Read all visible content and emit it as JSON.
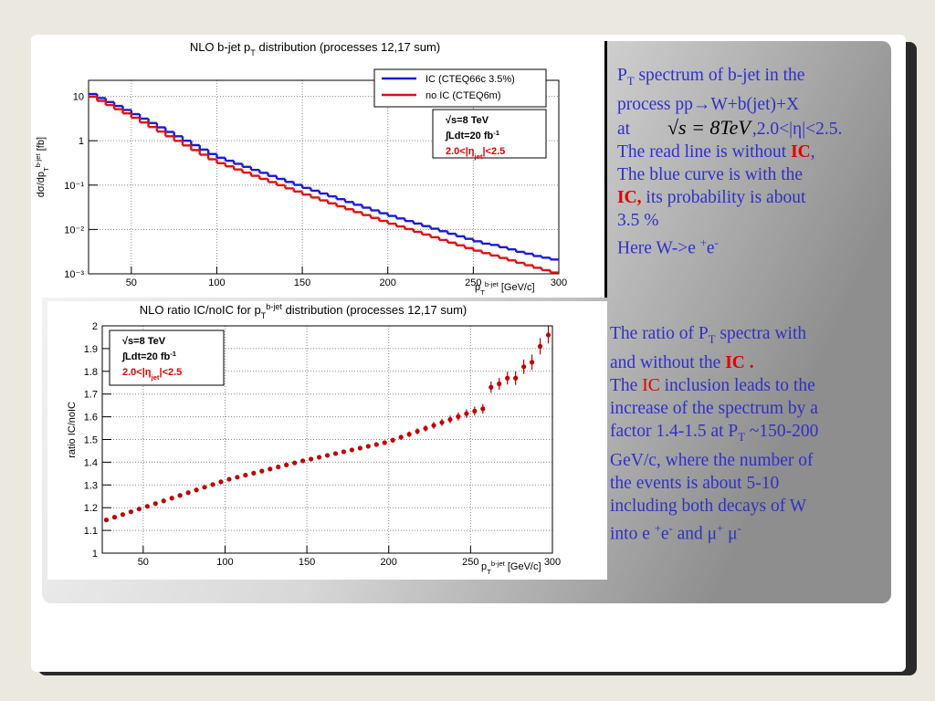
{
  "chart_data": [
    {
      "type": "histogram",
      "title": [
        "NLO b-jet p",
        {
          "sub": "T"
        },
        " distribution (processes 12,17 sum)"
      ],
      "ylabel": [
        "dσ/dp",
        {
          "sub": "T"
        },
        {
          "sup": "b-jet"
        },
        " [fb]"
      ],
      "xlabel": [
        "p",
        {
          "sub": "T"
        },
        {
          "sup": "b-jet"
        },
        " [GeV/c]"
      ],
      "bins": [
        25,
        30,
        35,
        40,
        45,
        50,
        55,
        60,
        65,
        70,
        75,
        80,
        85,
        90,
        95,
        100,
        105,
        110,
        115,
        120,
        125,
        130,
        135,
        140,
        145,
        150,
        155,
        160,
        165,
        170,
        175,
        180,
        185,
        190,
        195,
        200,
        205,
        210,
        215,
        220,
        225,
        230,
        235,
        240,
        245,
        250,
        255,
        260,
        265,
        270,
        275,
        280,
        285,
        290,
        295,
        300
      ],
      "series": [
        {
          "name": "IC (CTEQ66c 3.5%)",
          "color": "#1a1ad6",
          "values": [
            11.3,
            9.17,
            7.46,
            6.08,
            4.94,
            3.98,
            3.15,
            2.51,
            2.0,
            1.58,
            1.26,
            1.0,
            0.796,
            0.631,
            0.502,
            0.413,
            0.354,
            0.302,
            0.258,
            0.22,
            0.189,
            0.161,
            0.138,
            0.118,
            0.101,
            0.0865,
            0.0748,
            0.0646,
            0.0558,
            0.0482,
            0.0416,
            0.036,
            0.031,
            0.0269,
            0.0232,
            0.0202,
            0.0177,
            0.0155,
            0.0136,
            0.0119,
            0.0104,
            0.00914,
            0.008,
            0.00701,
            0.00615,
            0.00541,
            0.00479,
            0.00448,
            0.00398,
            0.00356,
            0.00313,
            0.00284,
            0.00252,
            0.00231,
            0.0021
          ]
        },
        {
          "name": "no IC (CTEQ6m)",
          "color": "#e01010",
          "values": [
            9.84,
            7.92,
            6.38,
            5.14,
            4.14,
            3.3,
            2.59,
            2.04,
            1.61,
            1.26,
            0.995,
            0.783,
            0.617,
            0.485,
            0.382,
            0.312,
            0.265,
            0.225,
            0.191,
            0.162,
            0.138,
            0.117,
            0.0994,
            0.0844,
            0.0717,
            0.0612,
            0.0526,
            0.0452,
            0.0388,
            0.0333,
            0.0286,
            0.0246,
            0.0211,
            0.0182,
            0.0156,
            0.0135,
            0.0117,
            0.0102,
            0.00884,
            0.00768,
            0.00668,
            0.0058,
            0.00504,
            0.00438,
            0.00381,
            0.00333,
            0.00293,
            0.00259,
            0.00228,
            0.00201,
            0.00177,
            0.00156,
            0.00137,
            0.00121,
            0.00107
          ]
        }
      ],
      "xlim": [
        25,
        300
      ],
      "ylim": [
        0.001,
        23
      ],
      "log_y": true,
      "grid": true,
      "legend": "top-right",
      "xticks": [
        50,
        100,
        150,
        200,
        250,
        300
      ],
      "yticks": [
        {
          "value": 0.001,
          "label": "10⁻³"
        },
        {
          "value": 0.01,
          "label": "10⁻²"
        },
        {
          "value": 0.1,
          "label": "10⁻¹"
        },
        1,
        10
      ],
      "annotation": [
        [
          "√s=8 TeV"
        ],
        [
          "∫Ldt=20 fb",
          {
            "sup": "-1"
          }
        ],
        [
          {
            "red": "2.0<|η"
          },
          {
            "redsub": "jet"
          },
          {
            "red": "|<2.5"
          }
        ]
      ]
    },
    {
      "type": "errorbar",
      "title": [
        "NLO ratio IC/noIC for p",
        {
          "sub": "T"
        },
        {
          "sup": "b-jet"
        },
        " distribution (processes 12,17 sum)"
      ],
      "ylabel": [
        "ratio IC/noIC"
      ],
      "xlabel": [
        "p",
        {
          "sub": "T"
        },
        {
          "sup": "b-jet"
        },
        " [GeV/c]"
      ],
      "x": [
        27.5,
        32.5,
        37.5,
        42.5,
        47.5,
        52.5,
        57.5,
        62.5,
        67.5,
        72.5,
        77.5,
        82.5,
        87.5,
        92.5,
        97.5,
        102.5,
        107.5,
        112.5,
        117.5,
        122.5,
        127.5,
        132.5,
        137.5,
        142.5,
        147.5,
        152.5,
        157.5,
        162.5,
        167.5,
        172.5,
        177.5,
        182.5,
        187.5,
        192.5,
        197.5,
        202.5,
        207.5,
        212.5,
        217.5,
        222.5,
        227.5,
        232.5,
        237.5,
        242.5,
        247.5,
        252.5,
        257.5,
        262.5,
        267.5,
        272.5,
        277.5,
        282.5,
        287.5,
        292.5,
        297.5
      ],
      "values": [
        1.146,
        1.158,
        1.17,
        1.182,
        1.194,
        1.206,
        1.218,
        1.23,
        1.242,
        1.254,
        1.266,
        1.278,
        1.29,
        1.302,
        1.314,
        1.325,
        1.334,
        1.343,
        1.352,
        1.361,
        1.37,
        1.379,
        1.388,
        1.397,
        1.406,
        1.414,
        1.422,
        1.43,
        1.438,
        1.446,
        1.454,
        1.462,
        1.47,
        1.478,
        1.486,
        1.497,
        1.51,
        1.523,
        1.536,
        1.549,
        1.562,
        1.575,
        1.588,
        1.601,
        1.614,
        1.625,
        1.635,
        1.73,
        1.745,
        1.77,
        1.77,
        1.82,
        1.84,
        1.91,
        1.96
      ],
      "errors": [
        0.005,
        0.005,
        0.005,
        0.005,
        0.005,
        0.005,
        0.005,
        0.005,
        0.005,
        0.005,
        0.005,
        0.005,
        0.005,
        0.005,
        0.005,
        0.006,
        0.006,
        0.006,
        0.006,
        0.006,
        0.006,
        0.006,
        0.006,
        0.006,
        0.006,
        0.008,
        0.008,
        0.008,
        0.008,
        0.008,
        0.008,
        0.008,
        0.008,
        0.008,
        0.008,
        0.01,
        0.011,
        0.012,
        0.013,
        0.014,
        0.015,
        0.016,
        0.017,
        0.018,
        0.019,
        0.02,
        0.021,
        0.025,
        0.026,
        0.028,
        0.03,
        0.032,
        0.034,
        0.036,
        0.038
      ],
      "color": "#c00000",
      "xlim": [
        25,
        300
      ],
      "ylim": [
        1,
        2
      ],
      "grid": true,
      "xticks": [
        50,
        100,
        150,
        200,
        250,
        300
      ],
      "yticks": [
        1,
        1.1,
        1.2,
        1.3,
        1.4,
        1.5,
        1.6,
        1.7,
        1.8,
        1.9,
        2
      ],
      "annotation": [
        [
          "√s=8 TeV"
        ],
        [
          "∫Ldt=20 fb",
          {
            "sup": "-1"
          }
        ],
        [
          {
            "red": "2.0<|η"
          },
          {
            "redsub": "jet"
          },
          {
            "red": "|<2.5"
          }
        ]
      ]
    }
  ],
  "text": {
    "block1": [
      [
        "P",
        {
          "sub": "T"
        },
        " spectrum of b-jet in the"
      ],
      [
        "process pp→W+b(jet)+X"
      ],
      [
        "at ",
        {
          "math": "√s = 8TeV"
        },
        ",2.0<|η|<2.5."
      ],
      [
        "The read line is without ",
        {
          "em": "IC"
        },
        ","
      ],
      [
        "The blue curve is with the"
      ],
      [
        {
          "em": "IC,"
        },
        " its probability is about"
      ],
      [
        "3.5 %"
      ],
      [
        "Here W->e ",
        {
          "sup": "+"
        },
        "e",
        {
          "sup": "-"
        }
      ]
    ],
    "block2": [
      [
        "The ratio of  P",
        {
          "sub": "T"
        },
        " spectra with"
      ],
      [
        "and without  the ",
        {
          "em": "IC ."
        }
      ],
      [
        "The ",
        {
          "red": "IC"
        },
        " inclusion leads to the"
      ],
      [
        "increase of  the spectrum by a"
      ],
      [
        "factor 1.4-1.5 at P",
        {
          "sub": "T"
        },
        "  ~150-200"
      ],
      [
        "GeV/c, where the number of"
      ],
      [
        "the events is about 5-10"
      ],
      [
        "including  both decays of W"
      ],
      [
        "into e ",
        {
          "sup": "+"
        },
        "e",
        {
          "sup": "-"
        },
        "  and  μ",
        {
          "sup": "+"
        },
        " μ",
        {
          "sup": "-"
        }
      ]
    ]
  }
}
